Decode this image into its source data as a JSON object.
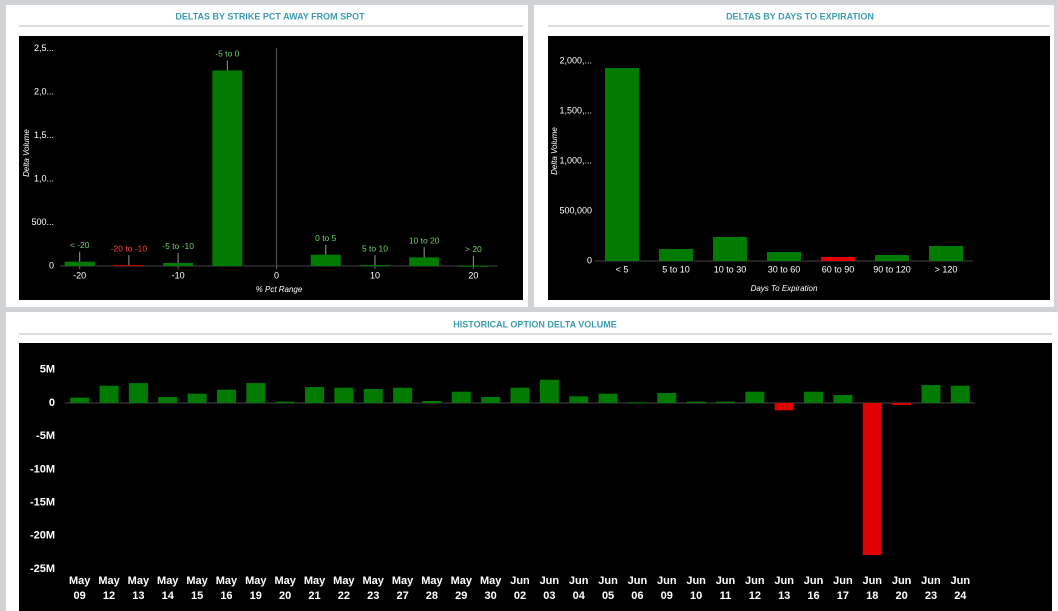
{
  "chart_data": [
    {
      "type": "bar",
      "title": "DELTAS BY STRIKE PCT AWAY FROM SPOT",
      "x_label": "% Pct Range",
      "y_label": "Delta Volume",
      "x": [
        -20,
        -15,
        -10,
        -5,
        5,
        10,
        15,
        20
      ],
      "labels": [
        "< -20",
        "-20 to -10",
        "-5 to -10",
        "-5 to 0",
        "0 to 5",
        "5 to 10",
        "10 to 20",
        "> 20"
      ],
      "values": [
        50000,
        10000,
        35000,
        2250000,
        130000,
        10000,
        100000,
        3000
      ],
      "colors": [
        "#007a00",
        "#e00000",
        "#007a00",
        "#007a00",
        "#007a00",
        "#007a00",
        "#007a00",
        "#007a00"
      ],
      "xlim": [
        -22,
        22.5
      ],
      "xticks": [
        -20,
        -10,
        0,
        10,
        20
      ],
      "ylim": [
        0,
        2600000
      ],
      "yticks": [
        0,
        {
          "value": 500000,
          "label": "500..."
        },
        {
          "value": 1000000,
          "label": "1,0..."
        },
        {
          "value": 1500000,
          "label": "1,5..."
        },
        {
          "value": 2000000,
          "label": "2,0..."
        },
        {
          "value": 2500000,
          "label": "2,5..."
        }
      ]
    },
    {
      "type": "bar",
      "title": "DELTAS BY DAYS TO EXPIRATION",
      "x_label": "Days To Expiration",
      "y_label": "Delta Volume",
      "categories": [
        "< 5",
        "5 to 10",
        "10 to 30",
        "30 to 60",
        "60 to 90",
        "90 to 120",
        "> 120"
      ],
      "values": [
        1930000,
        120000,
        240000,
        90000,
        40000,
        60000,
        150000
      ],
      "colors": [
        "#007a00",
        "#007a00",
        "#007a00",
        "#007a00",
        "#e00000",
        "#007a00",
        "#007a00"
      ],
      "ylim": [
        0,
        2200000
      ],
      "yticks": [
        0,
        {
          "value": 500000,
          "label": "500,000"
        },
        {
          "value": 1000000,
          "label": "1,000,..."
        },
        {
          "value": 1500000,
          "label": "1,500,..."
        },
        {
          "value": 2000000,
          "label": "2,000,..."
        }
      ]
    },
    {
      "type": "bar",
      "title": "HISTORICAL OPTION DELTA VOLUME",
      "categories": [
        [
          "May",
          "09"
        ],
        [
          "May",
          "12"
        ],
        [
          "May",
          "13"
        ],
        [
          "May",
          "14"
        ],
        [
          "May",
          "15"
        ],
        [
          "May",
          "16"
        ],
        [
          "May",
          "19"
        ],
        [
          "May",
          "20"
        ],
        [
          "May",
          "21"
        ],
        [
          "May",
          "22"
        ],
        [
          "May",
          "23"
        ],
        [
          "May",
          "27"
        ],
        [
          "May",
          "28"
        ],
        [
          "May",
          "29"
        ],
        [
          "May",
          "30"
        ],
        [
          "Jun",
          "02"
        ],
        [
          "Jun",
          "03"
        ],
        [
          "Jun",
          "04"
        ],
        [
          "Jun",
          "05"
        ],
        [
          "Jun",
          "06"
        ],
        [
          "Jun",
          "09"
        ],
        [
          "Jun",
          "10"
        ],
        [
          "Jun",
          "11"
        ],
        [
          "Jun",
          "12"
        ],
        [
          "Jun",
          "13"
        ],
        [
          "Jun",
          "16"
        ],
        [
          "Jun",
          "17"
        ],
        [
          "Jun",
          "18"
        ],
        [
          "Jun",
          "20"
        ],
        [
          "Jun",
          "23"
        ],
        [
          "Jun",
          "24"
        ]
      ],
      "values": [
        800000,
        2600000,
        3000000,
        900000,
        1400000,
        2000000,
        3000000,
        200000,
        2400000,
        2300000,
        2100000,
        2300000,
        300000,
        1700000,
        900000,
        2300000,
        3500000,
        1000000,
        1400000,
        100000,
        1500000,
        200000,
        200000,
        1700000,
        -1100000,
        1700000,
        1200000,
        -22900000,
        -300000,
        2700000,
        2600000
      ],
      "positive_color": "#007a00",
      "negative_color": "#e00000",
      "ylim": [
        -26000000,
        7000000
      ],
      "yticks": [
        {
          "value": -25000000,
          "label": "-25M"
        },
        {
          "value": -20000000,
          "label": "-20M"
        },
        {
          "value": -15000000,
          "label": "-15M"
        },
        {
          "value": -10000000,
          "label": "-10M"
        },
        {
          "value": -5000000,
          "label": "-5M"
        },
        0,
        {
          "value": 5000000,
          "label": "5M"
        }
      ]
    }
  ]
}
